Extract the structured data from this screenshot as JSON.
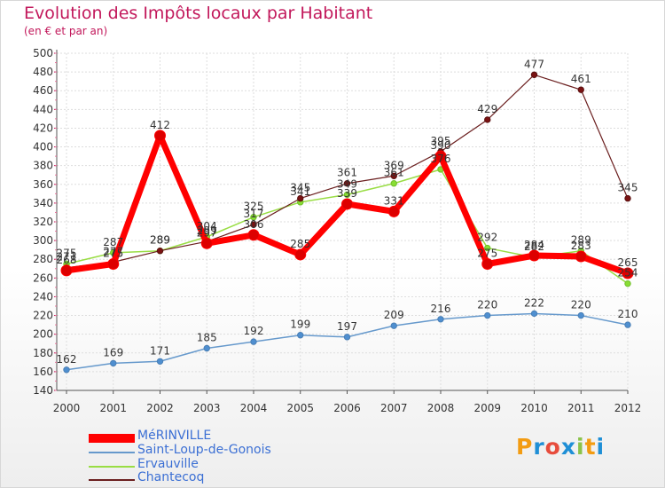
{
  "title": "Evolution des Impôts locaux par Habitant",
  "subtitle": "(en € et par an)",
  "brand": {
    "text": "Proxiti",
    "letters": [
      "P",
      "r",
      "o",
      "x",
      "i",
      "t",
      "i"
    ],
    "colors": [
      "#f39c12",
      "#1f8fd6",
      "#e74c3c",
      "#1f8fd6",
      "#8bc34a",
      "#f39c12",
      "#1f8fd6"
    ]
  },
  "chart_data": {
    "type": "line",
    "title": "Evolution des Impôts locaux par Habitant",
    "subtitle": "(en € et par an)",
    "xlabel": "",
    "ylabel": "",
    "x": [
      "2000",
      "2001",
      "2002",
      "2003",
      "2004",
      "2005",
      "2006",
      "2007",
      "2008",
      "2009",
      "2010",
      "2011",
      "2012"
    ],
    "ylim": [
      140,
      500
    ],
    "yticks": [
      140,
      160,
      180,
      200,
      220,
      240,
      260,
      280,
      300,
      320,
      340,
      360,
      380,
      400,
      420,
      440,
      460,
      480,
      500
    ],
    "grid": true,
    "legend_position": "bottom-left",
    "series": [
      {
        "name": "MéRINVILLE",
        "color": "#ff0000",
        "values": [
          268,
          275,
          412,
          297,
          306,
          285,
          339,
          331,
          390,
          275,
          284,
          283,
          265
        ]
      },
      {
        "name": "Saint-Loup-de-Gonois",
        "color": "#6699cc",
        "values": [
          162,
          169,
          171,
          185,
          192,
          199,
          197,
          209,
          216,
          220,
          222,
          220,
          210
        ]
      },
      {
        "name": "Ervauville",
        "color": "#99dd44",
        "values": [
          275,
          287,
          289,
          304,
          325,
          341,
          349,
          361,
          376,
          292,
          282,
          289,
          254
        ]
      },
      {
        "name": "Chantecoq",
        "color": "#6b1f1f",
        "values": [
          271,
          277,
          289,
          299,
          317,
          345,
          361,
          369,
          395,
          429,
          477,
          461,
          345
        ]
      }
    ]
  }
}
